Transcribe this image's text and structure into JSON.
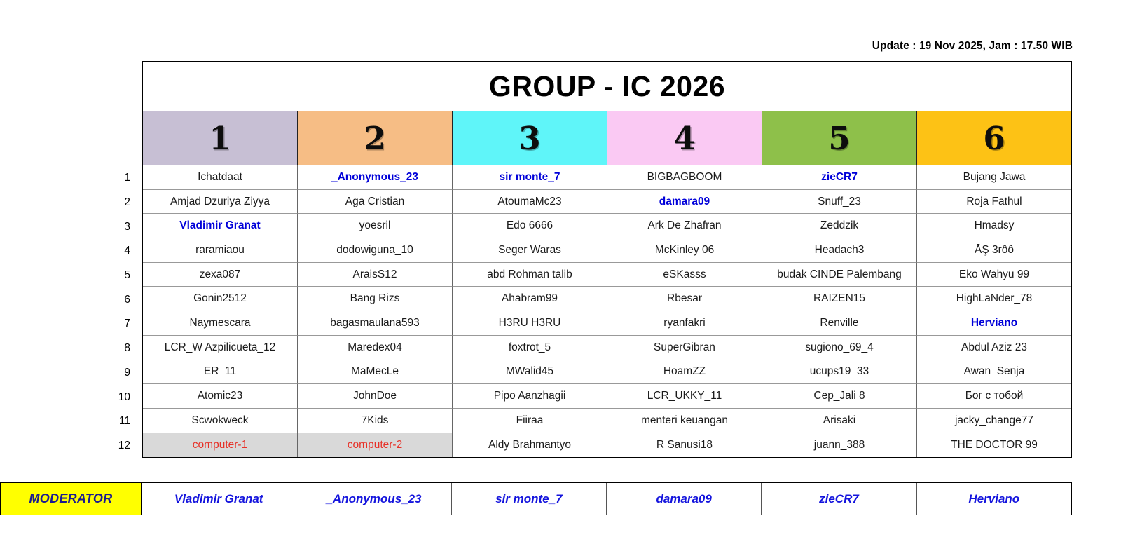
{
  "update_text": "Update : 19 Nov 2025, Jam : 17.50 WIB",
  "title": "GROUP - IC 2026",
  "groups": [
    {
      "num": "1",
      "color": "#c7bfd4"
    },
    {
      "num": "2",
      "color": "#f6bd85"
    },
    {
      "num": "3",
      "color": "#5ff5f9"
    },
    {
      "num": "4",
      "color": "#fac9f3"
    },
    {
      "num": "5",
      "color": "#8ec04a"
    },
    {
      "num": "6",
      "color": "#fdc215"
    }
  ],
  "rows": [
    {
      "num": "1",
      "cells": [
        {
          "text": "Ichatdaat"
        },
        {
          "text": "_Anonymous_23",
          "variant": "captain"
        },
        {
          "text": "sir monte_7",
          "variant": "captain"
        },
        {
          "text": "BIGBAGBOOM"
        },
        {
          "text": "zieCR7",
          "variant": "captain"
        },
        {
          "text": "Bujang Jawa"
        }
      ]
    },
    {
      "num": "2",
      "cells": [
        {
          "text": "Amjad Dzuriya Ziyya"
        },
        {
          "text": "Aga Cristian"
        },
        {
          "text": "AtoumaMc23"
        },
        {
          "text": "damara09",
          "variant": "captain"
        },
        {
          "text": "Snuff_23"
        },
        {
          "text": "Roja Fathul"
        }
      ]
    },
    {
      "num": "3",
      "cells": [
        {
          "text": "Vladimir Granat",
          "variant": "captain"
        },
        {
          "text": "yoesril"
        },
        {
          "text": "Edo 6666"
        },
        {
          "text": "Ark De Zhafran"
        },
        {
          "text": "Zeddzik"
        },
        {
          "text": "Hmadsy"
        }
      ]
    },
    {
      "num": "4",
      "cells": [
        {
          "text": "raramiaou"
        },
        {
          "text": "dodowiguna_10"
        },
        {
          "text": "Seger Waras"
        },
        {
          "text": "McKinley 06"
        },
        {
          "text": "Headach3"
        },
        {
          "text": "ĀŞ 3rôô"
        }
      ]
    },
    {
      "num": "5",
      "cells": [
        {
          "text": "zexa087"
        },
        {
          "text": "AraisS12"
        },
        {
          "text": "abd Rohman talib"
        },
        {
          "text": "eSKasss"
        },
        {
          "text": "budak CINDE Palembang"
        },
        {
          "text": "Eko Wahyu 99"
        }
      ]
    },
    {
      "num": "6",
      "cells": [
        {
          "text": "Gonin2512"
        },
        {
          "text": "Bang Rizs"
        },
        {
          "text": "Ahabram99"
        },
        {
          "text": "Rbesar"
        },
        {
          "text": "RAIZEN15"
        },
        {
          "text": "HighLaNder_78"
        }
      ]
    },
    {
      "num": "7",
      "cells": [
        {
          "text": "Naymescara"
        },
        {
          "text": "bagasmaulana593"
        },
        {
          "text": "H3RU H3RU"
        },
        {
          "text": "ryanfakri"
        },
        {
          "text": "Renville"
        },
        {
          "text": "Herviano",
          "variant": "captain"
        }
      ]
    },
    {
      "num": "8",
      "cells": [
        {
          "text": "LCR_W Azpilicueta_12"
        },
        {
          "text": "Maredex04"
        },
        {
          "text": "foxtrot_5"
        },
        {
          "text": "SuperGibran"
        },
        {
          "text": "sugiono_69_4"
        },
        {
          "text": "Abdul Aziz 23"
        }
      ]
    },
    {
      "num": "9",
      "cells": [
        {
          "text": "ER_11"
        },
        {
          "text": "MaMecLe"
        },
        {
          "text": "MWalid45"
        },
        {
          "text": "HoamZZ"
        },
        {
          "text": "ucups19_33"
        },
        {
          "text": "Awan_Senja"
        }
      ]
    },
    {
      "num": "10",
      "cells": [
        {
          "text": "Atomic23"
        },
        {
          "text": "JohnDoe"
        },
        {
          "text": "Pipo Aanzhagii"
        },
        {
          "text": "LCR_UKKY_11"
        },
        {
          "text": "Cep_Jali 8"
        },
        {
          "text": "Бог с тобой"
        }
      ]
    },
    {
      "num": "11",
      "cells": [
        {
          "text": "Scwokweck"
        },
        {
          "text": "7Kids"
        },
        {
          "text": "Fiiraa"
        },
        {
          "text": "menteri keuangan"
        },
        {
          "text": "Arisaki"
        },
        {
          "text": "jacky_change77"
        }
      ]
    },
    {
      "num": "12",
      "cells": [
        {
          "text": "computer-1",
          "variant": "computer"
        },
        {
          "text": "computer-2",
          "variant": "computer"
        },
        {
          "text": "Aldy Brahmantyo"
        },
        {
          "text": "R Sanusi18"
        },
        {
          "text": "juann_388"
        },
        {
          "text": "THE DOCTOR 99"
        }
      ]
    }
  ],
  "moderator": {
    "label": "MODERATOR",
    "label_bg": "#ffff00",
    "names": [
      "Vladimir Granat",
      "_Anonymous_23",
      "sir monte_7",
      "damara09",
      "zieCR7",
      "Herviano"
    ]
  },
  "colors": {
    "captain_blue": "#0000d9",
    "moderator_name_blue": "#1414dd",
    "moderator_label_blue": "#1b1b8f",
    "computer_red": "#e73128",
    "computer_gray": "#d9d9d9",
    "moderator_label_yellow": "#ffff00"
  }
}
